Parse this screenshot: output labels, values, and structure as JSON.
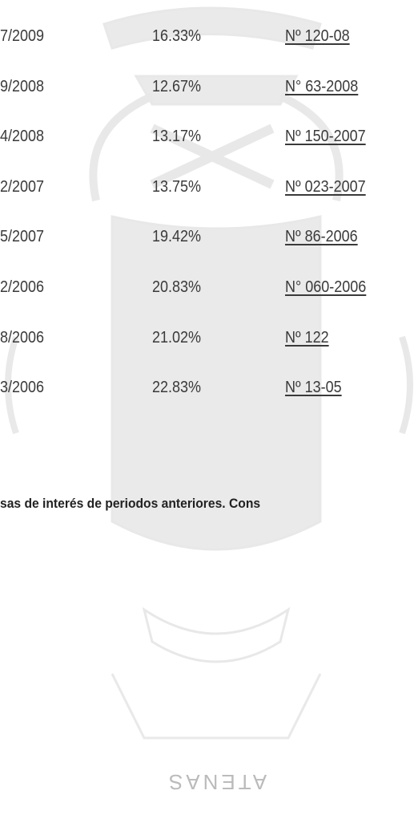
{
  "table": {
    "rows": [
      [
        "7/2009",
        "16.33%",
        "Nº 120-08"
      ],
      [
        "9/2008",
        "12.67%",
        "N° 63-2008"
      ],
      [
        "4/2008",
        "13.17%",
        "Nº 150-2007"
      ],
      [
        "2/2007",
        "13.75%",
        "Nº 023-2007"
      ],
      [
        "5/2007",
        "19.42%",
        "Nº 86-2006"
      ],
      [
        "2/2006",
        "20.83%",
        "N° 060-2006"
      ],
      [
        "8/2006",
        "21.02%",
        "Nº 122"
      ],
      [
        "3/2006",
        "22.83%",
        "Nº 13-05"
      ]
    ]
  },
  "note": "sas de interés de periodos anteriores.  Cons",
  "watermark": "ATENAS"
}
